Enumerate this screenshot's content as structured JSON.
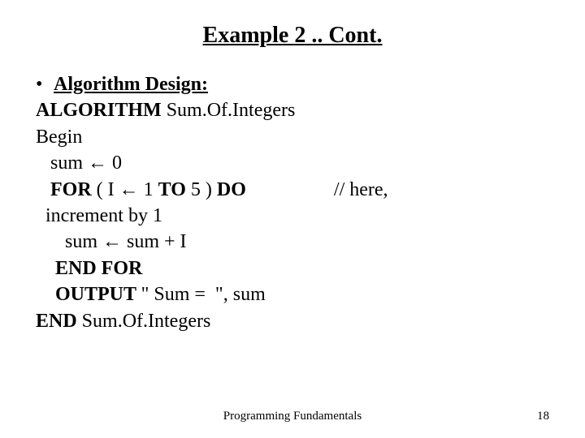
{
  "title": {
    "text": "Example 2 .. Cont.",
    "fontsize": 28
  },
  "content": {
    "fontsize": 24,
    "bullet_char": "•",
    "bullet_label": "Algorithm Design:",
    "alg_line": "ALGORITHM",
    "alg_name": " Sum.Of.Integers",
    "begin": "Begin",
    "line_sum0_a": "   sum ",
    "line_sum0_b": " 0",
    "for_kw1": "   FOR",
    "for_mid_a": " ( I ",
    "for_mid_b": " 1 ",
    "for_kw2": "TO",
    "for_mid_c": " 5 ) ",
    "for_kw3": "DO",
    "for_comment": "                  // here,",
    "inc_line": "  increment by 1",
    "sum_assign_a": "      sum ",
    "sum_assign_b": " sum + I",
    "endfor": "    END FOR",
    "output_kw": "    OUTPUT ",
    "output_rest": "\" Sum =  \", sum",
    "end_kw": "END",
    "end_rest": " Sum.Of.Integers"
  },
  "arrow": "←",
  "footer": {
    "text": "Programming Fundamentals",
    "fontsize": 15
  },
  "pagenum": {
    "text": "18",
    "fontsize": 15
  },
  "colors": {
    "text": "#000000",
    "background": "#ffffff"
  }
}
